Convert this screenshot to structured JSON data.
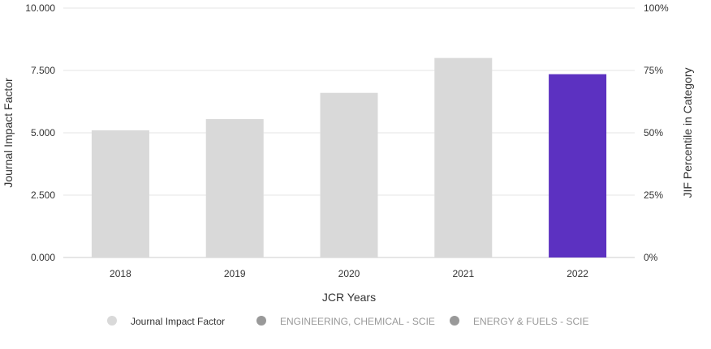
{
  "chart_data": {
    "type": "bar",
    "categories": [
      "2018",
      "2019",
      "2020",
      "2021",
      "2022"
    ],
    "values": [
      5.1,
      5.55,
      6.6,
      8.0,
      7.35
    ],
    "xlabel": "JCR Years",
    "ylabel": "Journal Impact Factor",
    "y2label": "JIF Percentile in Category",
    "ylim": [
      0,
      10
    ],
    "y2lim": [
      0,
      100
    ],
    "y_ticks": [
      "0.000",
      "2.500",
      "5.000",
      "7.500",
      "10.000"
    ],
    "y2_ticks": [
      "0%",
      "25%",
      "50%",
      "75%",
      "100%"
    ],
    "grid": true,
    "legend_position": "bottom",
    "bar_color": "#d9d9d9",
    "highlight_color": "#5c31c1",
    "highlight_category": "2022",
    "legend": [
      {
        "label": "Journal Impact Factor",
        "marker_color": "#d9d9d9",
        "text_color": "#333333"
      },
      {
        "label": "ENGINEERING, CHEMICAL - SCIE",
        "marker_color": "#999999",
        "text_color": "#999999"
      },
      {
        "label": "ENERGY & FUELS - SCIE",
        "marker_color": "#999999",
        "text_color": "#999999"
      }
    ]
  }
}
